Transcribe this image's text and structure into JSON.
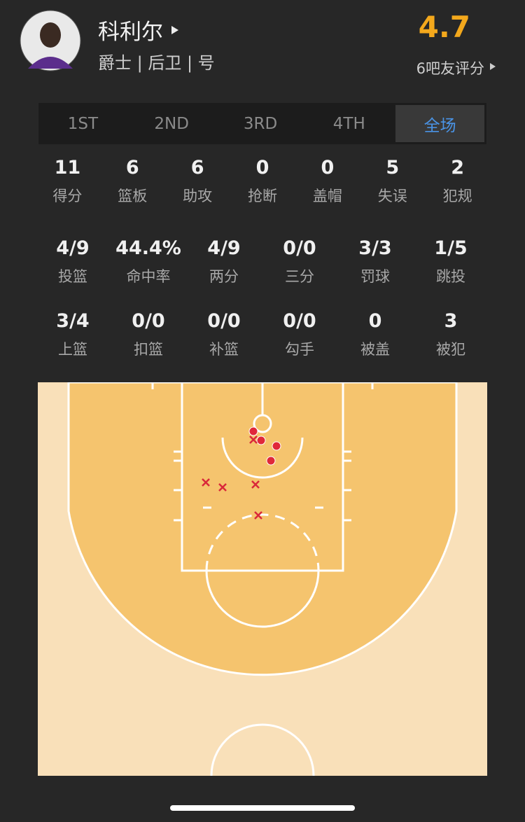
{
  "header": {
    "name": "科利尔",
    "team_info": "爵士 | 后卫 | 号",
    "rating": 4.7,
    "rating_label": "6吧友评分"
  },
  "tabs": [
    "1ST",
    "2ND",
    "3RD",
    "4TH",
    "全场"
  ],
  "stats": {
    "row1": [
      {
        "value": 11,
        "label": "得分"
      },
      {
        "value": 6,
        "label": "篮板"
      },
      {
        "value": 6,
        "label": "助攻"
      },
      {
        "value": 0,
        "label": "抢断"
      },
      {
        "value": 0,
        "label": "盖帽"
      },
      {
        "value": 5,
        "label": "失误"
      },
      {
        "value": 2,
        "label": "犯规"
      }
    ],
    "row2": [
      {
        "value": "4/9",
        "label": "投篮"
      },
      {
        "value": "44.4%",
        "label": "命中率"
      },
      {
        "value": "4/9",
        "label": "两分"
      },
      {
        "value": "0/0",
        "label": "三分"
      },
      {
        "value": "3/3",
        "label": "罚球"
      },
      {
        "value": "1/5",
        "label": "跳投"
      }
    ],
    "row3": [
      {
        "value": "3/4",
        "label": "上篮"
      },
      {
        "value": "0/0",
        "label": "扣篮"
      },
      {
        "value": "0/0",
        "label": "补篮"
      },
      {
        "value": "0/0",
        "label": "勾手"
      },
      {
        "value": 0,
        "label": "被盖"
      },
      {
        "value": 3,
        "label": "被犯"
      }
    ]
  }
}
